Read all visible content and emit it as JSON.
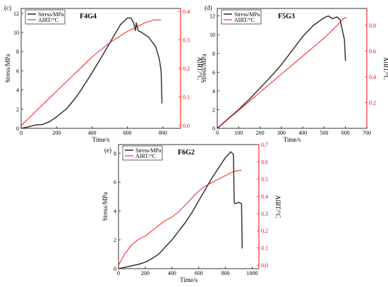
{
  "chart_data": [
    {
      "type": "line",
      "panel_label": "(c)",
      "title": "F4G4",
      "xlabel": "Time/s",
      "ylabel": "Stress/MPa",
      "y2label": "AIRT/°C",
      "xlim": [
        0,
        900
      ],
      "ylim": [
        0,
        12.5
      ],
      "y2lim": [
        -0.01,
        0.41
      ],
      "xticks": [
        0,
        200,
        400,
        600,
        800
      ],
      "yticks": [
        0,
        2,
        4,
        6,
        8,
        10,
        12
      ],
      "y2ticks": [
        0.0,
        0.1,
        0.2,
        0.3,
        0.4
      ],
      "y2tick_labels": [
        "0.0",
        "0.1",
        "0.2",
        "0.3",
        "0.4"
      ],
      "legend_position": "top-left",
      "colors": {
        "stress": "#333333",
        "airt": "#ff0000"
      },
      "series": [
        {
          "name": "Stress/MPa",
          "axis": "left",
          "x": [
            0,
            40,
            80,
            120,
            160,
            200,
            260,
            320,
            380,
            440,
            500,
            560,
            600,
            620,
            635,
            645,
            650,
            660,
            680,
            720,
            760,
            780,
            790,
            795
          ],
          "y": [
            0,
            0.15,
            0.35,
            0.4,
            0.7,
            1.2,
            2.1,
            3.5,
            5.2,
            7.0,
            8.9,
            10.8,
            11.5,
            11.5,
            11.0,
            10.2,
            11.0,
            10.2,
            10.0,
            9.5,
            8.5,
            7.2,
            6.0,
            2.6
          ]
        },
        {
          "name": "AIRT/°C",
          "axis": "right",
          "x": [
            0,
            50,
            100,
            150,
            200,
            250,
            300,
            350,
            400,
            450,
            500,
            550,
            600,
            650,
            700,
            750,
            790
          ],
          "y": [
            0.0,
            0.03,
            0.06,
            0.09,
            0.12,
            0.15,
            0.18,
            0.21,
            0.24,
            0.265,
            0.29,
            0.31,
            0.33,
            0.345,
            0.36,
            0.37,
            0.37
          ]
        }
      ]
    },
    {
      "type": "line",
      "panel_label": "(d)",
      "title": "F5G3",
      "xlabel": "Time/s",
      "ylabel": "Stress/MPa",
      "y2label": "AIRT/°C",
      "xlim": [
        0,
        700
      ],
      "ylim": [
        0,
        12.8
      ],
      "y2lim": [
        0,
        0.93
      ],
      "xticks": [
        0,
        100,
        200,
        300,
        400,
        500,
        600,
        700
      ],
      "yticks": [
        0,
        2,
        4,
        6,
        8,
        10,
        12
      ],
      "y2ticks": [
        0.2,
        0.4,
        0.6,
        0.8
      ],
      "y2tick_labels": [
        "0.2",
        "0.4",
        "0.6",
        "0.8"
      ],
      "legend_position": "top-left",
      "colors": {
        "stress": "#333333",
        "airt": "#ff0000"
      },
      "series": [
        {
          "name": "Stress/MPa",
          "axis": "left",
          "x": [
            0,
            50,
            100,
            150,
            200,
            250,
            300,
            350,
            400,
            450,
            500,
            520,
            540,
            560,
            575,
            585,
            595,
            600
          ],
          "y": [
            0,
            1.0,
            2.0,
            3.1,
            4.3,
            5.5,
            6.8,
            8.3,
            9.8,
            11.0,
            11.8,
            12.0,
            11.7,
            11.9,
            11.6,
            10.5,
            9.5,
            7.2
          ]
        },
        {
          "name": "AIRT/°C",
          "axis": "right",
          "x": [
            0,
            50,
            100,
            150,
            200,
            250,
            300,
            350,
            400,
            450,
            500,
            550,
            590,
            605
          ],
          "y": [
            0.0,
            0.07,
            0.14,
            0.21,
            0.28,
            0.35,
            0.42,
            0.49,
            0.56,
            0.63,
            0.7,
            0.78,
            0.85,
            0.86
          ]
        }
      ]
    },
    {
      "type": "line",
      "panel_label": "(e)",
      "title": "F6G2",
      "xlabel": "Time/s",
      "ylabel": "Stress/MPa",
      "y2label": "AIRT/°C",
      "xlim": [
        0,
        1050
      ],
      "ylim": [
        0,
        8.6
      ],
      "y2lim": [
        -0.02,
        0.7
      ],
      "xticks": [
        0,
        200,
        400,
        600,
        800,
        1000
      ],
      "yticks": [
        0,
        2,
        4,
        6,
        8
      ],
      "y2ticks": [
        0.0,
        0.1,
        0.2,
        0.3,
        0.4,
        0.5,
        0.6,
        0.7
      ],
      "y2tick_labels": [
        "0.0",
        "0.1",
        "0.2",
        "0.3",
        "0.4",
        "0.5",
        "0.6",
        "0.7"
      ],
      "legend_position": "top-left",
      "colors": {
        "stress": "#333333",
        "airt": "#ff0000"
      },
      "series": [
        {
          "name": "Stress/MPa",
          "axis": "left",
          "x": [
            0,
            50,
            100,
            150,
            200,
            250,
            300,
            350,
            400,
            450,
            500,
            550,
            600,
            650,
            700,
            750,
            800,
            840,
            860,
            865,
            870,
            900,
            920,
            925
          ],
          "y": [
            0,
            0.1,
            0.2,
            0.3,
            0.45,
            0.7,
            1.0,
            1.5,
            2.0,
            2.6,
            3.2,
            3.9,
            4.7,
            5.5,
            6.3,
            7.0,
            7.7,
            8.1,
            7.9,
            4.6,
            4.5,
            4.6,
            4.5,
            1.4
          ]
        },
        {
          "name": "AIRT/°C",
          "axis": "right",
          "x": [
            0,
            50,
            100,
            150,
            200,
            250,
            300,
            350,
            400,
            450,
            500,
            550,
            600,
            650,
            700,
            750,
            800,
            850,
            900,
            920
          ],
          "y": [
            0.0,
            0.07,
            0.12,
            0.15,
            0.17,
            0.2,
            0.23,
            0.26,
            0.28,
            0.31,
            0.35,
            0.39,
            0.43,
            0.46,
            0.48,
            0.5,
            0.52,
            0.54,
            0.55,
            0.55
          ]
        }
      ]
    }
  ]
}
